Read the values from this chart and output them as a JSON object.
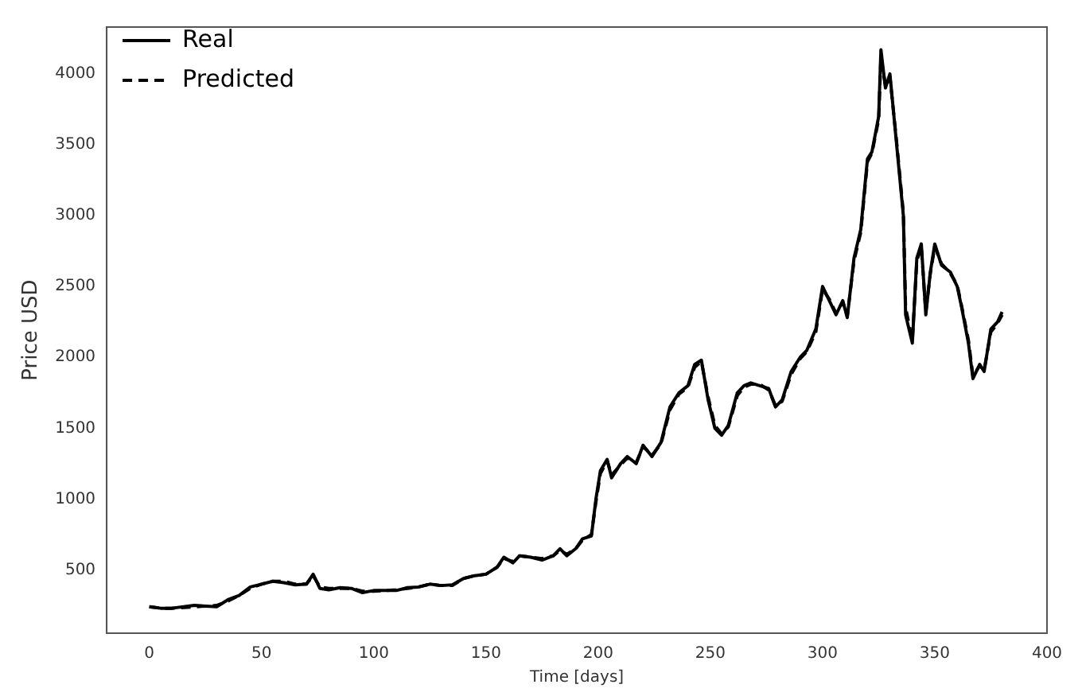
{
  "chart_data": {
    "type": "line",
    "xlabel": "Time [days]",
    "ylabel": "Price USD",
    "xlim": [
      -19,
      400
    ],
    "xticks": [
      0,
      50,
      100,
      150,
      200,
      250,
      300,
      350,
      400
    ],
    "ylim": [
      54,
      4330
    ],
    "yticks": [
      500,
      1000,
      1500,
      2000,
      2500,
      3000,
      3500,
      4000
    ],
    "grid": false,
    "legend": "top left",
    "marker": "none",
    "x": [
      0,
      5,
      10,
      20,
      30,
      35,
      40,
      45,
      50,
      55,
      60,
      65,
      70,
      73,
      76,
      80,
      85,
      90,
      95,
      100,
      110,
      115,
      120,
      125,
      130,
      135,
      140,
      145,
      150,
      155,
      158,
      162,
      165,
      170,
      175,
      180,
      183,
      186,
      190,
      193,
      197,
      199,
      201,
      204,
      206,
      210,
      213,
      217,
      220,
      224,
      228,
      232,
      236,
      240,
      243,
      246,
      249,
      252,
      255,
      258,
      262,
      265,
      268,
      272,
      276,
      279,
      282,
      286,
      290,
      293,
      297,
      300,
      303,
      306,
      309,
      311,
      314,
      317,
      320,
      322,
      325,
      326,
      328,
      330,
      333,
      336,
      337,
      340,
      342,
      344,
      346,
      348,
      350,
      353,
      357,
      360,
      362,
      365,
      367,
      370,
      372,
      375,
      378,
      380
    ],
    "series": [
      {
        "name": "Real",
        "color": "#000000",
        "line_style": "solid",
        "values": [
          240,
          230,
          230,
          250,
          240,
          290,
          320,
          380,
          400,
          420,
          410,
          395,
          400,
          470,
          370,
          360,
          375,
          370,
          340,
          355,
          355,
          375,
          380,
          400,
          390,
          395,
          440,
          460,
          470,
          520,
          590,
          550,
          600,
          590,
          570,
          600,
          650,
          600,
          650,
          720,
          740,
          1000,
          1200,
          1280,
          1150,
          1250,
          1300,
          1250,
          1380,
          1300,
          1400,
          1650,
          1750,
          1800,
          1950,
          1980,
          1700,
          1500,
          1450,
          1520,
          1750,
          1800,
          1820,
          1800,
          1780,
          1650,
          1700,
          1900,
          2000,
          2050,
          2200,
          2500,
          2400,
          2300,
          2400,
          2280,
          2700,
          2900,
          3400,
          3450,
          3700,
          4170,
          3900,
          4000,
          3500,
          3000,
          2300,
          2100,
          2700,
          2800,
          2300,
          2600,
          2800,
          2650,
          2600,
          2500,
          2350,
          2100,
          1850,
          1950,
          1900,
          2200,
          2250,
          2320
        ]
      },
      {
        "name": "Predicted",
        "color": "#000000",
        "line_style": "dashed",
        "values": [
          240,
          230,
          230,
          240,
          250,
          280,
          320,
          370,
          400,
          420,
          420,
          400,
          400,
          460,
          380,
          370,
          370,
          370,
          350,
          350,
          360,
          370,
          380,
          400,
          390,
          390,
          440,
          460,
          470,
          520,
          580,
          560,
          600,
          590,
          580,
          600,
          640,
          610,
          650,
          710,
          750,
          980,
          1180,
          1270,
          1170,
          1240,
          1290,
          1260,
          1370,
          1310,
          1390,
          1630,
          1740,
          1790,
          1930,
          1970,
          1720,
          1520,
          1460,
          1510,
          1730,
          1790,
          1810,
          1810,
          1770,
          1660,
          1690,
          1880,
          1990,
          2040,
          2180,
          2480,
          2410,
          2310,
          2390,
          2290,
          2680,
          2880,
          3380,
          3440,
          3680,
          4120,
          3920,
          3980,
          3520,
          3020,
          2350,
          2120,
          2680,
          2780,
          2320,
          2590,
          2780,
          2660,
          2590,
          2510,
          2360,
          2120,
          1870,
          1940,
          1910,
          2180,
          2240,
          2300
        ]
      }
    ]
  }
}
